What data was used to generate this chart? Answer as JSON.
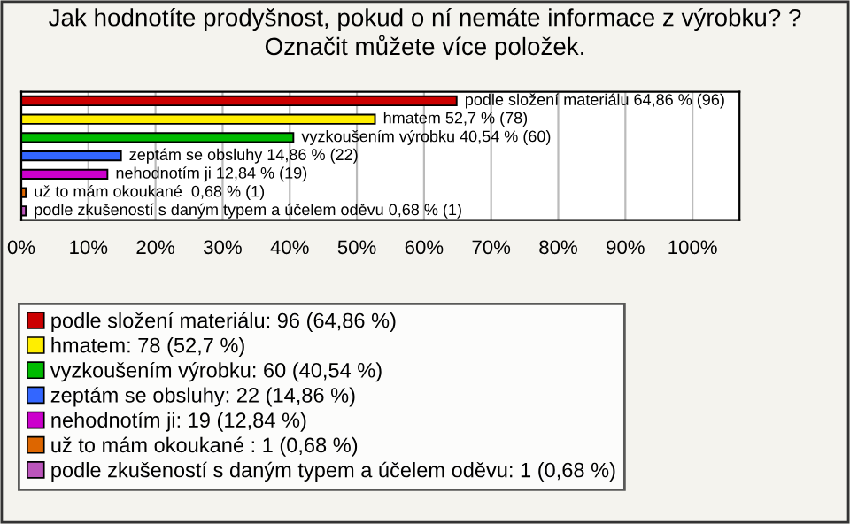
{
  "chart_data": {
    "type": "bar",
    "orientation": "horizontal",
    "stacked": true,
    "title": "Jak hodnotíte prodyšnost, pokud o ní nemáte informace z výrobku? ?\nOznačit můžete více položek.",
    "categories": [
      null,
      null,
      null,
      null,
      null,
      null,
      null
    ],
    "series": [
      {
        "name": "podle složení materiálu: 96 (64,86 %)",
        "color": "#cc0000",
        "values": [
          64.86,
          null,
          null,
          null,
          null,
          null,
          null
        ],
        "value_labels": [
          "podle složení materiálu 64,86 % (96)",
          null,
          null,
          null,
          null,
          null,
          null
        ]
      },
      {
        "name": "hmatem: 78 (52,7 %)",
        "color": "#ffee00",
        "values": [
          null,
          52.7,
          null,
          null,
          null,
          null,
          null
        ],
        "value_labels": [
          null,
          "hmatem 52,7 % (78)",
          null,
          null,
          null,
          null,
          null
        ]
      },
      {
        "name": "vyzkoušením výrobku: 60 (40,54 %)",
        "color": "#00bb00",
        "values": [
          null,
          null,
          40.54,
          null,
          null,
          null,
          null
        ],
        "value_labels": [
          null,
          null,
          "vyzkoušením výrobku 40,54 % (60)",
          null,
          null,
          null,
          null
        ]
      },
      {
        "name": "zeptám se obsluhy: 22 (14,86 %)",
        "color": "#3366ff",
        "values": [
          null,
          null,
          null,
          14.86,
          null,
          null,
          null
        ],
        "value_labels": [
          null,
          null,
          null,
          "zeptám se obsluhy 14,86 % (22)",
          null,
          null,
          null
        ]
      },
      {
        "name": "nehodnotím ji: 19 (12,84 %)",
        "color": "#cc00cc",
        "values": [
          null,
          null,
          null,
          null,
          12.84,
          null,
          null
        ],
        "value_labels": [
          null,
          null,
          null,
          null,
          "nehodnotím ji 12,84 % (19)",
          null,
          null
        ]
      },
      {
        "name": "už to mám okoukané : 1 (0,68 %)",
        "color": "#dd6600",
        "values": [
          null,
          null,
          null,
          null,
          null,
          0.68,
          null
        ],
        "value_labels": [
          null,
          null,
          null,
          null,
          null,
          "už to mám okoukané  0,68 % (1)",
          null
        ]
      },
      {
        "name": "podle zkušeností s daným typem a účelem oděvu: 1 (0,68 %)",
        "color": "#bb55bb",
        "values": [
          null,
          null,
          null,
          null,
          null,
          null,
          0.68
        ],
        "value_labels": [
          null,
          null,
          null,
          null,
          null,
          null,
          "podle zkušeností s daným typem a účelem oděvu 0,68 % (1)"
        ]
      }
    ],
    "xlim": [
      0,
      107
    ],
    "xticks": [
      {
        "value": 0,
        "label": "0%"
      },
      {
        "value": 10,
        "label": "10%"
      },
      {
        "value": 20,
        "label": "20%"
      },
      {
        "value": 30,
        "label": "30%"
      },
      {
        "value": 40,
        "label": "40%"
      },
      {
        "value": 50,
        "label": "50%"
      },
      {
        "value": 60,
        "label": "60%"
      },
      {
        "value": 70,
        "label": "70%"
      },
      {
        "value": 80,
        "label": "80%"
      },
      {
        "value": 90,
        "label": "90%"
      },
      {
        "value": 100,
        "label": "100%"
      }
    ],
    "grid": "x",
    "legend": "bottom"
  }
}
